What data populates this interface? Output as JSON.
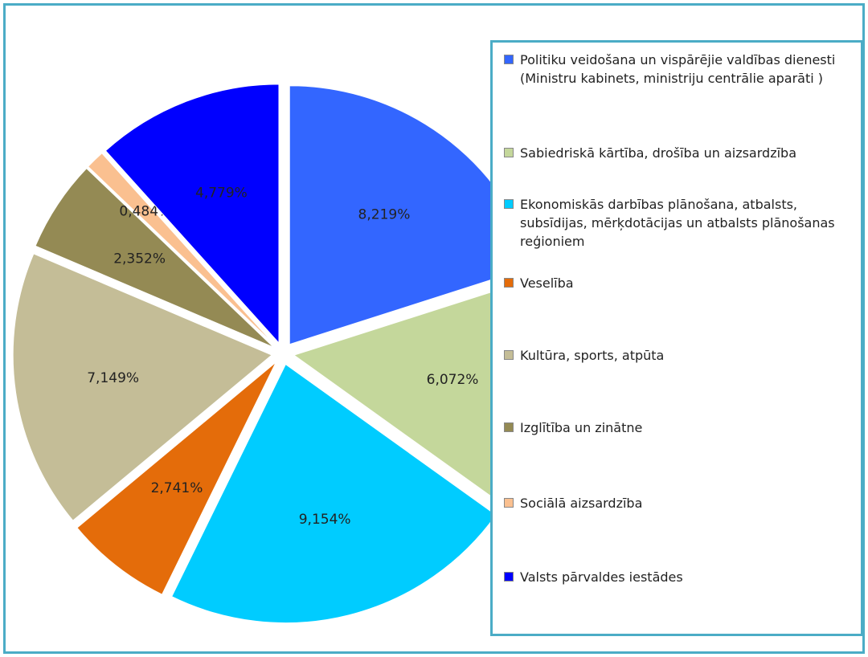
{
  "chart_data": {
    "type": "pie",
    "categories": [
      "Politiku veidošana un vispārējie valdības dienesti (Ministru kabinets, ministriju centrālie aparāti )",
      "Sabiedriskā kārtība, drošība un aizsardzība",
      "Ekonomiskās darbības plānošana, atbalsts, subsīdijas, mērķdotācijas un atbalsts plānošanas reģioniem",
      "Veselība",
      "Kultūra, sports, atpūta",
      "Izglītība un zinātne",
      "Sociālā aizsardzība",
      "Valsts pārvaldes iestādes"
    ],
    "values": [
      8.219,
      6.072,
      9.154,
      2.741,
      7.149,
      2.352,
      0.484,
      4.779
    ],
    "value_labels": [
      "8,219%",
      "6,072%",
      "9,154%",
      "2,741%",
      "7,149%",
      "2,352%",
      "0,484%",
      "4,779%"
    ],
    "colors": [
      "#3366ff",
      "#c4d79b",
      "#00ccff",
      "#e46c0a",
      "#c4bd97",
      "#948a54",
      "#fac090",
      "#0000ff"
    ],
    "legend": "right"
  }
}
